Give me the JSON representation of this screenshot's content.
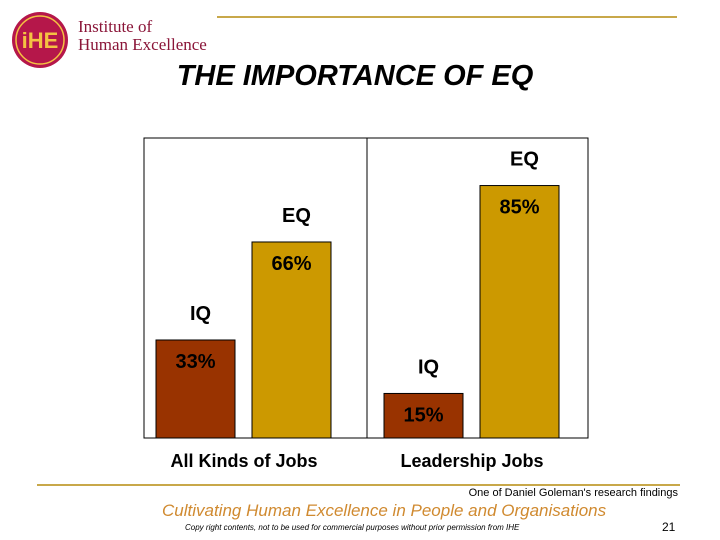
{
  "header": {
    "org_line1": "Institute of",
    "org_line2": "Human Excellence",
    "logo_text": "iHE",
    "title": "THE IMPORTANCE OF EQ"
  },
  "chart_data": {
    "type": "bar",
    "categories": [
      "All Kinds of Jobs",
      "Leadership Jobs"
    ],
    "series": [
      {
        "name": "IQ",
        "values": [
          33,
          15
        ],
        "labels": [
          "33%",
          "15%"
        ],
        "color": "#993300"
      },
      {
        "name": "EQ",
        "values": [
          66,
          85
        ],
        "labels": [
          "66%",
          "85%"
        ],
        "color": "#cc9900"
      }
    ],
    "unit": "%",
    "ylim": [
      0,
      100
    ],
    "grid": false,
    "legend": "none"
  },
  "footer": {
    "tagline": "Cultivating Human Excellence in People and Organisations",
    "source": "One of Daniel Goleman's research findings",
    "copyright": "Copy right contents, not to be used for commercial purposes without prior permission from IHE",
    "page_number": "21"
  },
  "colors": {
    "accent_line": "#c8a84a",
    "brand": "#8a1538",
    "tagline": "#d08a30"
  }
}
